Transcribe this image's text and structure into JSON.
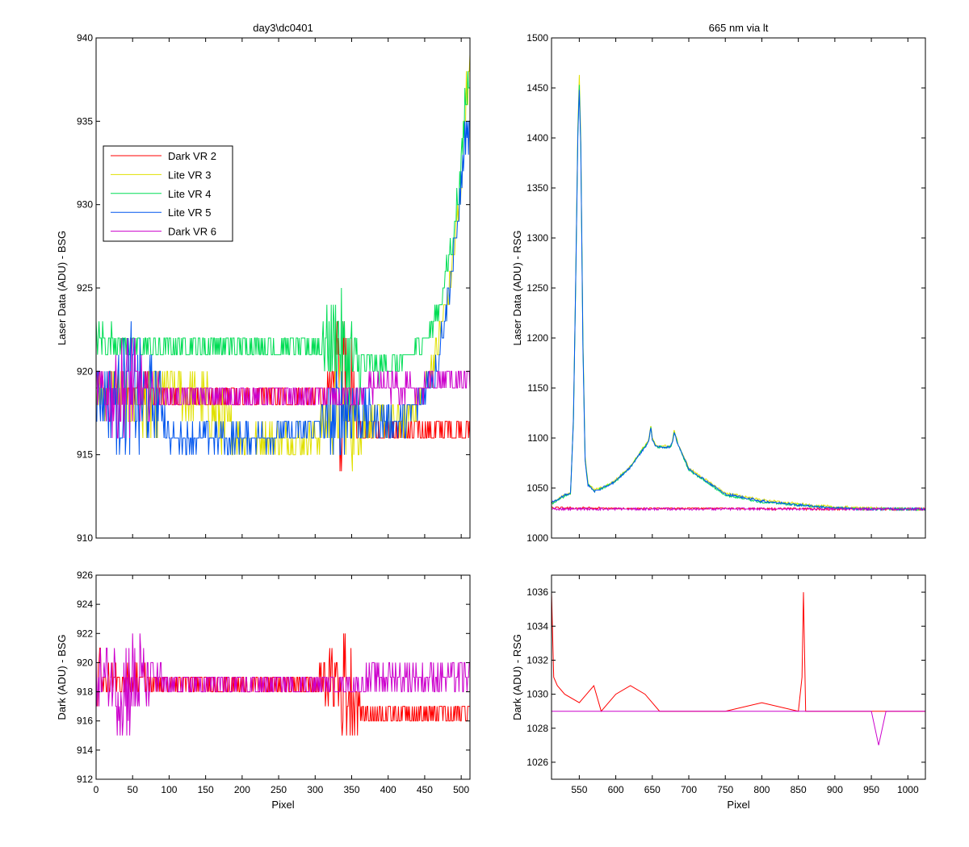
{
  "chart_data": [
    {
      "id": "tl",
      "type": "line",
      "title": "day3\\dc0401",
      "xlabel": "",
      "ylabel": "Laser Data (ADU) - BSG",
      "xlim": [
        0,
        512
      ],
      "ylim": [
        910,
        940
      ],
      "xticks": [
        0,
        50,
        100,
        150,
        200,
        250,
        300,
        350,
        400,
        450,
        500
      ],
      "show_xticklabels": false,
      "yticks": [
        910,
        915,
        920,
        925,
        930,
        935,
        940
      ],
      "legend": "upper-left",
      "grid": false,
      "series": [
        {
          "name": "Dark VR 2",
          "color": "#ff0000",
          "x": [
            0,
            10,
            20,
            30,
            40,
            50,
            60,
            70,
            80,
            100,
            150,
            200,
            250,
            300,
            325,
            330,
            335,
            340,
            345,
            350,
            355,
            360,
            370,
            400,
            450,
            500,
            512
          ],
          "y": [
            919,
            919,
            918.5,
            919,
            918.5,
            919,
            918.5,
            919,
            918.5,
            918.5,
            918.5,
            918.5,
            918.5,
            918.5,
            919,
            922,
            915,
            923,
            914,
            921,
            917,
            917,
            916.5,
            916.5,
            916.5,
            916.5,
            916.5
          ],
          "noise": [
            0.8,
            1,
            1,
            1,
            1,
            1,
            1,
            1,
            1,
            0.7,
            0.7,
            0.7,
            0.7,
            0.7,
            1,
            3,
            3,
            3,
            3,
            3,
            2,
            0.5,
            0.6,
            0.6,
            0.6,
            0.6,
            0.6
          ]
        },
        {
          "name": "Lite VR 3",
          "color": "#e0e000",
          "x": [
            0,
            20,
            50,
            80,
            100,
            150,
            170,
            200,
            300,
            330,
            350,
            380,
            420,
            440,
            460,
            480,
            490,
            500,
            505,
            512
          ],
          "y": [
            918.5,
            919,
            918,
            918,
            919,
            918,
            917,
            916,
            916,
            918,
            917,
            917,
            917,
            918,
            920,
            924,
            927,
            931,
            936,
            938
          ],
          "noise": [
            1.5,
            1.5,
            2.5,
            2.5,
            1.5,
            2,
            2,
            1,
            1,
            3,
            3,
            1,
            1,
            1,
            1,
            1,
            1,
            1,
            1.5,
            1
          ]
        },
        {
          "name": "Lite VR 4",
          "color": "#00dd55",
          "x": [
            0,
            50,
            100,
            200,
            300,
            330,
            350,
            380,
            420,
            440,
            460,
            470,
            480,
            490,
            500,
            505,
            512
          ],
          "y": [
            922,
            921.5,
            921.5,
            921.5,
            921.5,
            922,
            920.5,
            920,
            920.5,
            921.5,
            922.5,
            924,
            926,
            928.5,
            932,
            936,
            938
          ],
          "noise": [
            1,
            0.8,
            0.8,
            0.8,
            0.8,
            3,
            3,
            0.7,
            0.7,
            0.7,
            0.7,
            0.8,
            0.8,
            0.8,
            1,
            1.5,
            1
          ]
        },
        {
          "name": "Lite VR 5",
          "color": "#0055ee",
          "x": [
            0,
            30,
            50,
            60,
            70,
            90,
            100,
            150,
            200,
            300,
            330,
            350,
            380,
            420,
            440,
            460,
            470,
            480,
            490,
            500,
            505,
            512
          ],
          "y": [
            919,
            918,
            919,
            918,
            918,
            918.5,
            916,
            916,
            916,
            916.5,
            917.5,
            918,
            917,
            917,
            918,
            919.5,
            921,
            924,
            927,
            931,
            934,
            934
          ],
          "noise": [
            2,
            3,
            4,
            4,
            3,
            2,
            0.6,
            0.8,
            0.8,
            0.8,
            3,
            3,
            1,
            1,
            1,
            1,
            1,
            1,
            1,
            1,
            1.5,
            1
          ]
        },
        {
          "name": "Dark VR 6",
          "color": "#cc00cc",
          "x": [
            0,
            10,
            20,
            30,
            40,
            50,
            55,
            60,
            70,
            80,
            100,
            300,
            330,
            360,
            380,
            420,
            450,
            470,
            500,
            512
          ],
          "y": [
            919,
            919,
            918.5,
            918.5,
            919,
            919,
            918,
            919,
            918.5,
            919,
            918.5,
            918.5,
            918.5,
            918.5,
            919,
            919,
            919,
            919.5,
            919.5,
            919.5
          ],
          "noise": [
            1,
            1.5,
            2.5,
            3,
            3.5,
            3.5,
            3.5,
            2.5,
            1.5,
            1,
            0.7,
            0.7,
            0.7,
            0.7,
            0.7,
            0.7,
            0.7,
            0.7,
            0.7,
            0.7
          ]
        }
      ]
    },
    {
      "id": "tr",
      "type": "line",
      "title": "665 nm via lt",
      "xlabel": "",
      "ylabel": "Laser Data (ADU) - RSG",
      "xlim": [
        512,
        1024
      ],
      "ylim": [
        1000,
        1500
      ],
      "xticks": [
        550,
        600,
        650,
        700,
        750,
        800,
        850,
        900,
        950,
        1000
      ],
      "show_xticklabels": false,
      "yticks": [
        1000,
        1050,
        1100,
        1150,
        1200,
        1250,
        1300,
        1350,
        1400,
        1450,
        1500
      ],
      "grid": false,
      "series": [
        {
          "name": "Dark VR 2",
          "color": "#ff0000",
          "x": [
            512,
            600,
            700,
            800,
            900,
            1024
          ],
          "y": [
            1030,
            1029.5,
            1029.5,
            1029.5,
            1029,
            1029
          ],
          "noise": [
            1,
            1,
            1,
            1,
            1,
            1
          ]
        },
        {
          "name": "Lite VR 3",
          "color": "#e0e000",
          "x": [
            512,
            530,
            538,
            542,
            545,
            548,
            550,
            552,
            555,
            558,
            562,
            570,
            580,
            600,
            620,
            640,
            645,
            648,
            650,
            655,
            665,
            675,
            678,
            680,
            685,
            700,
            750,
            800,
            850,
            900,
            950,
            1000,
            1024
          ],
          "y": [
            1035,
            1043,
            1045,
            1120,
            1250,
            1410,
            1462,
            1400,
            1200,
            1080,
            1055,
            1048,
            1050,
            1058,
            1072,
            1093,
            1098,
            1112,
            1100,
            1092,
            1092,
            1092,
            1098,
            1108,
            1095,
            1070,
            1045,
            1038,
            1034,
            1031,
            1030,
            1029,
            1029
          ],
          "noise": [
            1,
            1,
            1,
            2,
            2,
            2,
            2,
            2,
            2,
            1,
            1,
            1,
            1,
            1,
            1,
            1,
            1,
            1,
            1,
            1,
            1,
            1,
            1,
            1,
            1,
            1,
            1,
            1,
            1,
            1,
            1,
            1,
            1
          ]
        },
        {
          "name": "Lite VR 4",
          "color": "#00dd55",
          "x": [
            512,
            530,
            538,
            542,
            545,
            548,
            550,
            552,
            555,
            558,
            562,
            570,
            580,
            600,
            620,
            640,
            645,
            648,
            650,
            655,
            665,
            675,
            678,
            680,
            685,
            700,
            750,
            800,
            850,
            900,
            950,
            1000,
            1024
          ],
          "y": [
            1034,
            1042,
            1044,
            1115,
            1245,
            1405,
            1452,
            1395,
            1195,
            1078,
            1054,
            1047,
            1049,
            1057,
            1071,
            1092,
            1097,
            1110,
            1099,
            1091,
            1091,
            1091,
            1097,
            1106,
            1094,
            1068,
            1043,
            1036,
            1033,
            1030,
            1029,
            1029,
            1029
          ],
          "noise": [
            1,
            1,
            1,
            2,
            2,
            2,
            2,
            2,
            2,
            1,
            1,
            1,
            1,
            1,
            1,
            1,
            1,
            1,
            1,
            1,
            1,
            1,
            1,
            1,
            1,
            1,
            1,
            1,
            1,
            1,
            1,
            1,
            1
          ]
        },
        {
          "name": "Lite VR 5",
          "color": "#0055ee",
          "x": [
            512,
            530,
            538,
            542,
            545,
            548,
            550,
            552,
            555,
            558,
            562,
            570,
            580,
            600,
            620,
            640,
            645,
            648,
            650,
            655,
            665,
            675,
            678,
            680,
            685,
            700,
            750,
            800,
            850,
            900,
            950,
            1000,
            1024
          ],
          "y": [
            1035,
            1043,
            1045,
            1118,
            1248,
            1400,
            1450,
            1392,
            1190,
            1077,
            1053,
            1047,
            1049,
            1057,
            1071,
            1091,
            1097,
            1110,
            1099,
            1091,
            1091,
            1091,
            1097,
            1106,
            1094,
            1069,
            1044,
            1037,
            1033,
            1030,
            1029,
            1029,
            1029
          ],
          "noise": [
            1,
            1,
            1,
            2,
            2,
            2,
            2,
            2,
            2,
            1,
            1,
            1,
            1,
            1,
            1,
            1,
            1,
            1,
            1,
            1,
            1,
            1,
            1,
            1,
            1,
            1,
            1,
            1,
            1,
            1,
            1,
            1,
            1
          ]
        },
        {
          "name": "Dark VR 6",
          "color": "#cc00cc",
          "x": [
            512,
            600,
            700,
            800,
            900,
            1024
          ],
          "y": [
            1029,
            1029,
            1029,
            1029,
            1029,
            1029
          ],
          "noise": [
            1,
            1,
            1,
            1,
            1,
            1
          ]
        }
      ]
    },
    {
      "id": "bl",
      "type": "line",
      "title": "",
      "xlabel": "Pixel",
      "ylabel": "Dark (ADU) - BSG",
      "xlim": [
        0,
        512
      ],
      "ylim": [
        912,
        926
      ],
      "xticks": [
        0,
        50,
        100,
        150,
        200,
        250,
        300,
        350,
        400,
        450,
        500
      ],
      "show_xticklabels": true,
      "yticks": [
        912,
        914,
        916,
        918,
        920,
        922,
        924,
        926
      ],
      "grid": false,
      "series": [
        {
          "name": "Dark VR 2",
          "color": "#ff0000",
          "x": [
            0,
            5,
            10,
            50,
            100,
            200,
            300,
            325,
            330,
            335,
            340,
            345,
            350,
            355,
            360,
            365,
            400,
            450,
            500,
            512
          ],
          "y": [
            919,
            920,
            918.5,
            919,
            918.5,
            918.5,
            918.5,
            919,
            919,
            918,
            919,
            918,
            918,
            917.5,
            917,
            916.5,
            916.5,
            916.5,
            916.5,
            916.5
          ],
          "noise": [
            3,
            2,
            1,
            1,
            1,
            1,
            1,
            2,
            4,
            4,
            4,
            4,
            3,
            3,
            1,
            0.8,
            0.8,
            0.8,
            0.8,
            0.8
          ]
        },
        {
          "name": "Dark VR 6",
          "color": "#cc00cc",
          "x": [
            0,
            10,
            20,
            30,
            40,
            50,
            55,
            60,
            70,
            80,
            100,
            200,
            300,
            330,
            360,
            380,
            400,
            450,
            500,
            512
          ],
          "y": [
            919,
            919,
            919,
            918.5,
            918.5,
            919,
            918,
            919,
            918.5,
            919,
            918.5,
            918.5,
            918.5,
            918.5,
            918.5,
            919,
            919,
            919,
            919,
            919
          ],
          "noise": [
            2,
            2,
            2.5,
            3.5,
            4,
            4,
            4,
            3,
            2,
            1.2,
            1,
            1,
            1,
            1,
            1,
            1,
            1,
            1,
            1,
            1
          ]
        }
      ]
    },
    {
      "id": "br",
      "type": "line",
      "title": "",
      "xlabel": "Pixel",
      "ylabel": "Dark (ADU) - RSG",
      "xlim": [
        512,
        1024
      ],
      "ylim": [
        1025,
        1037
      ],
      "xticks": [
        550,
        600,
        650,
        700,
        750,
        800,
        850,
        900,
        950,
        1000
      ],
      "show_xticklabels": true,
      "yticks": [
        1026,
        1028,
        1030,
        1032,
        1034,
        1036
      ],
      "grid": false,
      "series": [
        {
          "name": "Dark VR 2",
          "color": "#ff0000",
          "x": [
            512,
            515,
            520,
            530,
            550,
            560,
            570,
            580,
            600,
            620,
            640,
            660,
            700,
            750,
            800,
            850,
            855,
            857,
            860,
            900,
            950,
            1000,
            1024
          ],
          "y": [
            1036,
            1031,
            1030.5,
            1030,
            1029.5,
            1030,
            1030.5,
            1029,
            1030,
            1030.5,
            1030,
            1029,
            1029,
            1029,
            1029.5,
            1029,
            1031,
            1036,
            1029,
            1029,
            1029,
            1029,
            1029
          ]
        },
        {
          "name": "Dark VR 6",
          "color": "#cc00cc",
          "x": [
            512,
            550,
            600,
            650,
            700,
            750,
            800,
            850,
            900,
            950,
            960,
            970,
            1000,
            1024
          ],
          "y": [
            1029,
            1029,
            1029,
            1029,
            1029,
            1029,
            1029,
            1029,
            1029,
            1029,
            1027,
            1029,
            1029,
            1029
          ]
        }
      ]
    }
  ]
}
